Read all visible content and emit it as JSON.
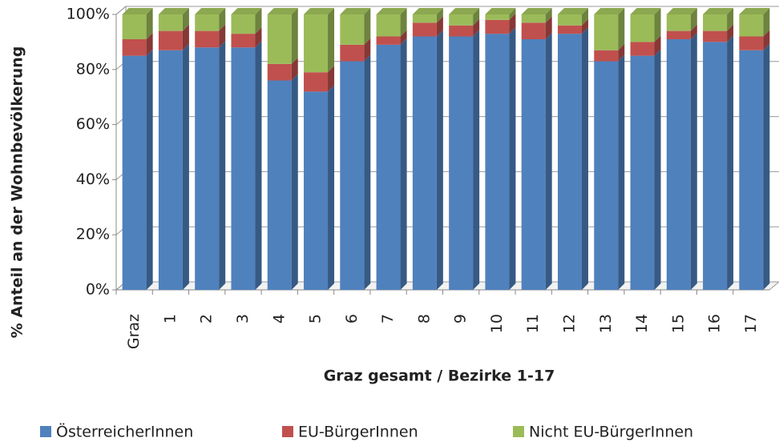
{
  "chart_data": {
    "type": "stacked_bar_100",
    "xlabel": "Graz gesamt  / Bezirke 1-17",
    "ylabel": "% Anteil an der Wohnbevölkerung",
    "categories": [
      "Graz",
      "1",
      "2",
      "3",
      "4",
      "5",
      "6",
      "7",
      "8",
      "9",
      "10",
      "11",
      "12",
      "13",
      "14",
      "15",
      "16",
      "17"
    ],
    "series": [
      {
        "name": "ÖsterreicherInnen",
        "color": "#4f81bd",
        "values": [
          85,
          87,
          88,
          88,
          76,
          72,
          83,
          89,
          92,
          92,
          93,
          91,
          93,
          83,
          85,
          91,
          90,
          87
        ]
      },
      {
        "name": "EU-BürgerInnen",
        "color": "#c0504d",
        "values": [
          6,
          7,
          6,
          5,
          6,
          7,
          6,
          3,
          5,
          4,
          5,
          6,
          3,
          4,
          5,
          3,
          4,
          5
        ]
      },
      {
        "name": "Nicht EU-BürgerInnen",
        "color": "#9bbb59",
        "values": [
          9,
          6,
          6,
          7,
          18,
          21,
          11,
          8,
          3,
          4,
          2,
          3,
          4,
          13,
          10,
          6,
          6,
          8
        ]
      }
    ],
    "ylim": [
      0,
      100
    ],
    "yticks": [
      {
        "value": 0,
        "label": "0%"
      },
      {
        "value": 20,
        "label": "20%"
      },
      {
        "value": 40,
        "label": "40%"
      },
      {
        "value": 60,
        "label": "60%"
      },
      {
        "value": 80,
        "label": "80%"
      },
      {
        "value": 100,
        "label": "100%"
      }
    ],
    "grid": true,
    "legend": "bottom"
  }
}
